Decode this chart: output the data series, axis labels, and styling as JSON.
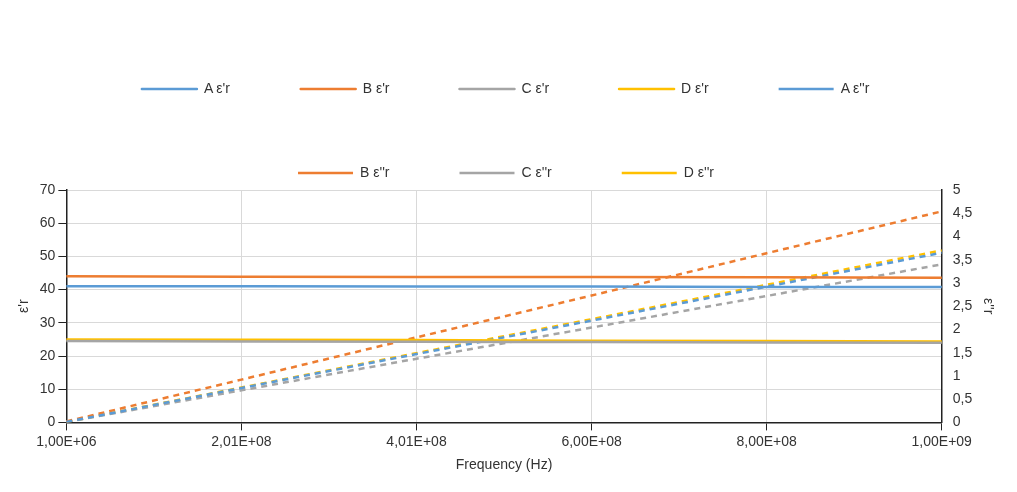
{
  "chart_data": {
    "type": "line",
    "xlabel": "Frequency (Hz)",
    "ylabel": "ε'r",
    "y2label": "ε''r",
    "categories": [
      "1,00E+06",
      "2,01E+08",
      "4,01E+08",
      "6,00E+08",
      "8,00E+08",
      "1,00E+09"
    ],
    "series": [
      {
        "name": "A ε'r",
        "color": "#5b9bd5",
        "values": [
          41,
          41,
          40.9,
          40.9,
          40.8,
          40.8
        ]
      },
      {
        "name": "B ε'r",
        "color": "#ed7d31",
        "values": [
          44,
          43.9,
          43.8,
          43.8,
          43.7,
          43.6
        ]
      },
      {
        "name": "C ε'r",
        "color": "#a5a5a5",
        "values": [
          24.5,
          24.4,
          24.3,
          24.2,
          24.1,
          24
        ]
      },
      {
        "name": "D ε'r",
        "color": "#ffc000",
        "values": [
          25,
          24.9,
          24.8,
          24.6,
          24.5,
          24.4
        ]
      },
      {
        "name": "A ε''r",
        "color": "#5b9bd5",
        "values": [
          0.01,
          0.74,
          1.47,
          2.19,
          2.92,
          3.65
        ],
        "axis": "y2",
        "line_style": "dashed"
      },
      {
        "name": "B ε''r",
        "color": "#ed7d31",
        "values": [
          0.02,
          0.92,
          1.83,
          2.73,
          3.64,
          4.54
        ],
        "axis": "y2",
        "line_style": "dashed"
      },
      {
        "name": "C ε''r",
        "color": "#a5a5a5",
        "values": [
          0.01,
          0.69,
          1.37,
          2.04,
          2.72,
          3.4
        ],
        "axis": "y2",
        "line_style": "dashed"
      },
      {
        "name": "D ε''r",
        "color": "#ffc000",
        "values": [
          0.01,
          0.75,
          1.49,
          2.22,
          2.96,
          3.7
        ],
        "axis": "y2",
        "line_style": "dashed"
      }
    ],
    "ylim": [
      0,
      70
    ],
    "yticks": [
      0,
      10,
      20,
      30,
      40,
      50,
      60,
      70
    ],
    "y2lim": [
      0,
      5
    ],
    "y2ticks": [
      0,
      {
        "value": 0.5,
        "label": "0,5"
      },
      1,
      {
        "value": 1.5,
        "label": "1,5"
      },
      2,
      {
        "value": 2.5,
        "label": "2,5"
      },
      3,
      {
        "value": 3.5,
        "label": "3,5"
      },
      4,
      {
        "value": 4.5,
        "label": "4,5"
      },
      5
    ],
    "grid": true,
    "legend": "top",
    "marker": "none",
    "line_style": "solid"
  }
}
